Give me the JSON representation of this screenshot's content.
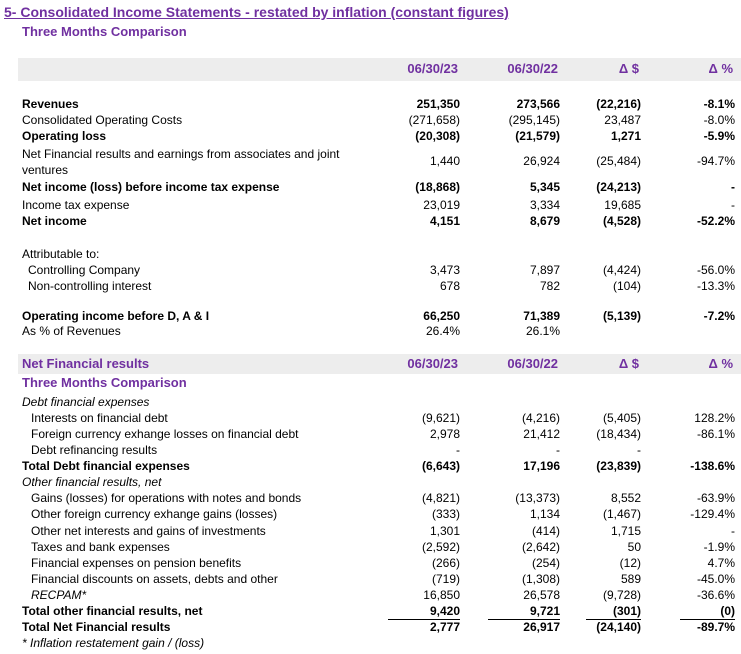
{
  "header": {
    "title": "5- Consolidated Income Statements - restated by inflation (constant figures)",
    "subtitle": "Three Months Comparison"
  },
  "table1": {
    "columns": [
      "06/30/23",
      "06/30/22",
      "Δ $",
      "Δ %"
    ],
    "rows": [
      {
        "label": "Revenues",
        "values": [
          "251,350",
          "273,566",
          "(22,216)",
          "-8.1%"
        ]
      },
      {
        "label": "Consolidated Operating Costs",
        "values": [
          "(271,658)",
          "(295,145)",
          "23,487",
          "-8.0%"
        ]
      },
      {
        "label": "Operating loss",
        "values": [
          "(20,308)",
          "(21,579)",
          "1,271",
          "-5.9%"
        ]
      },
      {
        "label": "Net Financial results and earnings from associates and joint ventures",
        "values": [
          "1,440",
          "26,924",
          "(25,484)",
          "-94.7%"
        ]
      },
      {
        "label": "Net income (loss) before income tax expense",
        "values": [
          "(18,868)",
          "5,345",
          "(24,213)",
          "-"
        ]
      },
      {
        "label": "Income tax expense",
        "values": [
          "23,019",
          "3,334",
          "19,685",
          "-"
        ]
      },
      {
        "label": "Net income",
        "values": [
          "4,151",
          "8,679",
          "(4,528)",
          "-52.2%"
        ]
      },
      {
        "label": "Attributable to:"
      },
      {
        "label": "Controlling Company",
        "values": [
          "3,473",
          "7,897",
          "(4,424)",
          "-56.0%"
        ]
      },
      {
        "label": "Non-controlling interest",
        "values": [
          "678",
          "782",
          "(104)",
          "-13.3%"
        ]
      },
      {
        "label": "Operating income before D, A & I",
        "values": [
          "66,250",
          "71,389",
          "(5,139)",
          "-7.2%"
        ]
      },
      {
        "label": "As % of Revenues",
        "values": [
          "26.4%",
          "26.1%"
        ]
      }
    ]
  },
  "table2": {
    "title": "Net Financial results",
    "columns": [
      "06/30/23",
      "06/30/22",
      "Δ $",
      "Δ %"
    ],
    "subtitle": "Three Months Comparison",
    "rows": [
      {
        "label": "Debt financial expenses"
      },
      {
        "label": "Interests on financial debt",
        "values": [
          "(9,621)",
          "(4,216)",
          "(5,405)",
          "128.2%"
        ]
      },
      {
        "label": "Foreign currency exhange losses on financial debt",
        "values": [
          "2,978",
          "21,412",
          "(18,434)",
          "-86.1%"
        ]
      },
      {
        "label": "Debt refinancing results",
        "values": [
          "-",
          "-",
          "-"
        ]
      },
      {
        "label": "Total Debt financial expenses",
        "values": [
          "(6,643)",
          "17,196",
          "(23,839)",
          "-138.6%"
        ]
      },
      {
        "label": "Other financial results, net"
      },
      {
        "label": "Gains (losses) for operations with notes and bonds",
        "values": [
          "(4,821)",
          "(13,373)",
          "8,552",
          "-63.9%"
        ]
      },
      {
        "label": "Other foreign currency exhange gains (losses)",
        "values": [
          "(333)",
          "1,134",
          "(1,467)",
          "-129.4%"
        ]
      },
      {
        "label": "Other net interests and gains of investments",
        "values": [
          "1,301",
          "(414)",
          "1,715",
          "-"
        ]
      },
      {
        "label": "Taxes and bank expenses",
        "values": [
          "(2,592)",
          "(2,642)",
          "50",
          "-1.9%"
        ]
      },
      {
        "label": "Financial expenses on pension benefits",
        "values": [
          "(266)",
          "(254)",
          "(12)",
          "4.7%"
        ]
      },
      {
        "label": "Financial discounts on assets, debts and other",
        "values": [
          "(719)",
          "(1,308)",
          "589",
          "-45.0%"
        ]
      },
      {
        "label": "RECPAM*",
        "values": [
          "16,850",
          "26,578",
          "(9,728)",
          "-36.6%"
        ]
      },
      {
        "label": "Total other financial results, net",
        "values": [
          "9,420",
          "9,721",
          "(301)",
          "(0)"
        ]
      },
      {
        "label": "Total Net Financial results",
        "values": [
          "2,777",
          "26,917",
          "(24,140)",
          "-89.7%"
        ]
      }
    ]
  },
  "footnote": "* Inflation restatement gain / (loss)"
}
